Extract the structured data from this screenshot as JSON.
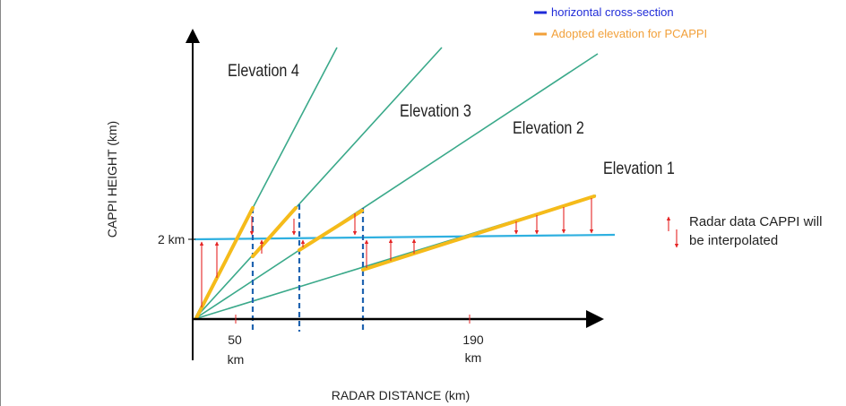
{
  "legend": [
    {
      "label": "horizontal cross-section",
      "color": "#1f2bd8"
    },
    {
      "label": "Adopted elevation for PCAPPI",
      "color": "#f2a03a"
    }
  ],
  "y_axis_label": "CAPPI HEIGHT (km)",
  "x_axis_label": "RADAR DISTANCE (km)",
  "height_marker": "2 km",
  "x_ticks": [
    {
      "value": "50",
      "unit": "km"
    },
    {
      "value": "190",
      "unit": "km"
    }
  ],
  "elevations": [
    "Elevation 1",
    "Elevation 2",
    "Elevation 3",
    "Elevation 4"
  ],
  "note": {
    "line1": "Radar data CAPPI will",
    "line2": "be interpolated"
  },
  "colors": {
    "beam": "#3aa98a",
    "cappi_line": "#2fb0e0",
    "adopted": "#f5bb1a",
    "boundary": "#1f63b0",
    "arrow": "#e52525",
    "axis": "#000000"
  }
}
